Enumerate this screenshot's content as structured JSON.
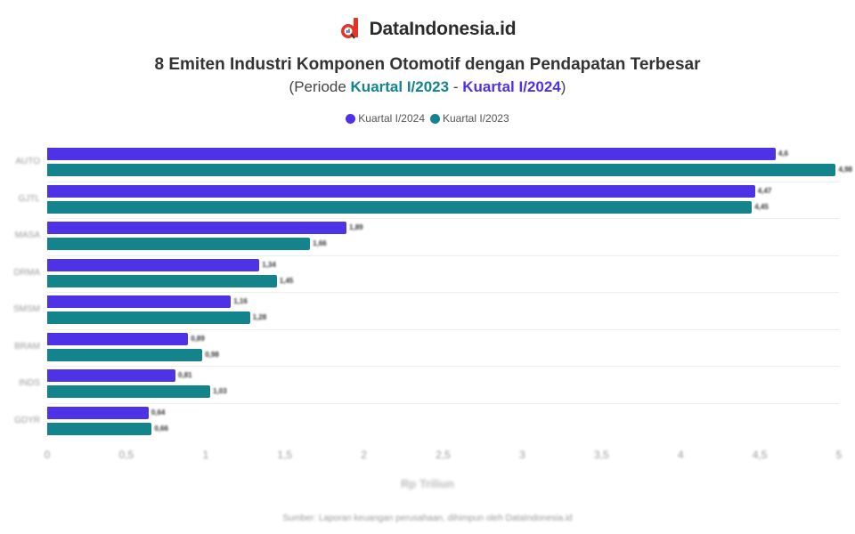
{
  "brand": {
    "name": "DataIndonesia.id",
    "logo_color": "#e63329"
  },
  "header": {
    "title": "8 Emiten Industri Komponen Otomotif dengan Pendapatan Terbesar",
    "subtitle_prefix": "(Periode ",
    "subtitle_from": "Kuartal I/2023",
    "subtitle_sep": " - ",
    "subtitle_to": "Kuartal I/2024",
    "subtitle_suffix": ")"
  },
  "legend": [
    {
      "label": "Kuartal I/2024",
      "color": "#4e33e6"
    },
    {
      "label": "Kuartal I/2023",
      "color": "#13838c"
    }
  ],
  "footer": {
    "source": "Sumber: Laporan keuangan perusahaan, dihimpun oleh DataIndonesia.id"
  },
  "chart_data": {
    "type": "bar",
    "orientation": "horizontal",
    "title": "8 Emiten Industri Komponen Otomotif dengan Pendapatan Terbesar",
    "subtitle": "(Periode Kuartal I/2023 - Kuartal I/2024)",
    "xlabel": "Rp Triliun",
    "ylabel": "",
    "xlim": [
      0,
      5
    ],
    "xticks": [
      "0",
      "0,5",
      "1",
      "1,5",
      "2",
      "2,5",
      "3",
      "3,5",
      "4",
      "4,5",
      "5"
    ],
    "grid": true,
    "legend_position": "top",
    "categories": [
      "AUTO",
      "GJTL",
      "MASA",
      "DRMA",
      "SMSM",
      "BRAM",
      "INDS",
      "GDYR"
    ],
    "series": [
      {
        "name": "Kuartal I/2024",
        "color": "#4e33e6",
        "values": [
          4.6,
          4.47,
          1.89,
          1.34,
          1.16,
          0.89,
          0.81,
          0.64
        ]
      },
      {
        "name": "Kuartal I/2023",
        "color": "#13838c",
        "values": [
          4.98,
          4.45,
          1.66,
          1.45,
          1.28,
          0.98,
          1.03,
          0.66
        ]
      }
    ],
    "value_labels": [
      [
        "4,6",
        "4,98"
      ],
      [
        "4,47",
        "4,45"
      ],
      [
        "1,89",
        "1,66"
      ],
      [
        "1,34",
        "1,45"
      ],
      [
        "1,16",
        "1,28"
      ],
      [
        "0,89",
        "0,98"
      ],
      [
        "0,81",
        "1,03"
      ],
      [
        "0,64",
        "0,66"
      ]
    ]
  }
}
